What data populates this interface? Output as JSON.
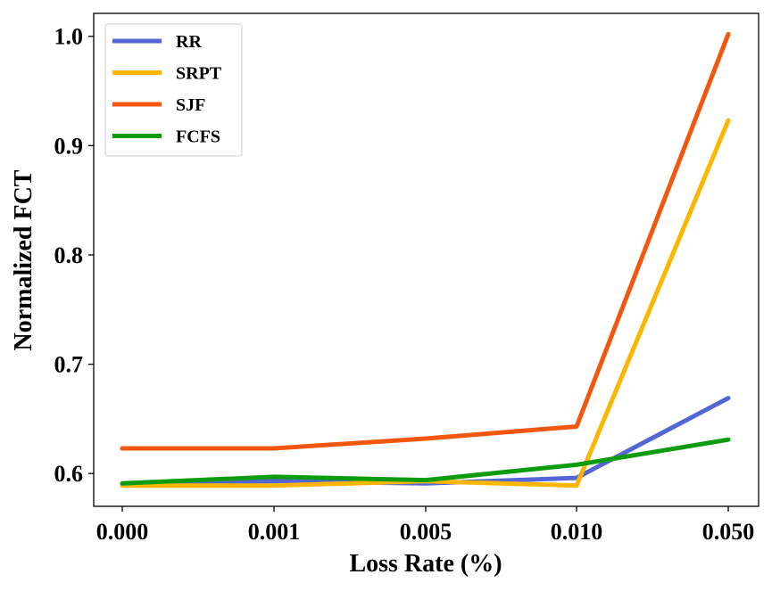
{
  "chart_data": {
    "type": "line",
    "title": "",
    "xlabel": "Loss Rate (%)",
    "ylabel": "Normalized FCT",
    "categories": [
      "0.000",
      "0.001",
      "0.005",
      "0.010",
      "0.050"
    ],
    "ylim": [
      0.57,
      1.021
    ],
    "yticks": [
      0.6,
      0.7,
      0.8,
      0.9,
      1.0
    ],
    "ytick_labels": [
      "0.6",
      "0.7",
      "0.8",
      "0.9",
      "1.0"
    ],
    "grid": false,
    "legend_position": "upper-left",
    "series": [
      {
        "name": "RR",
        "color": "#5465d6",
        "values": [
          0.59,
          0.593,
          0.591,
          0.596,
          0.669
        ]
      },
      {
        "name": "SRPT",
        "color": "#fcb600",
        "values": [
          0.589,
          0.589,
          0.593,
          0.589,
          0.923
        ]
      },
      {
        "name": "SJF",
        "color": "#f2570d",
        "values": [
          0.623,
          0.623,
          0.632,
          0.643,
          1.002
        ]
      },
      {
        "name": "FCFS",
        "color": "#0d9c0d",
        "values": [
          0.591,
          0.597,
          0.594,
          0.608,
          0.631
        ]
      }
    ]
  }
}
